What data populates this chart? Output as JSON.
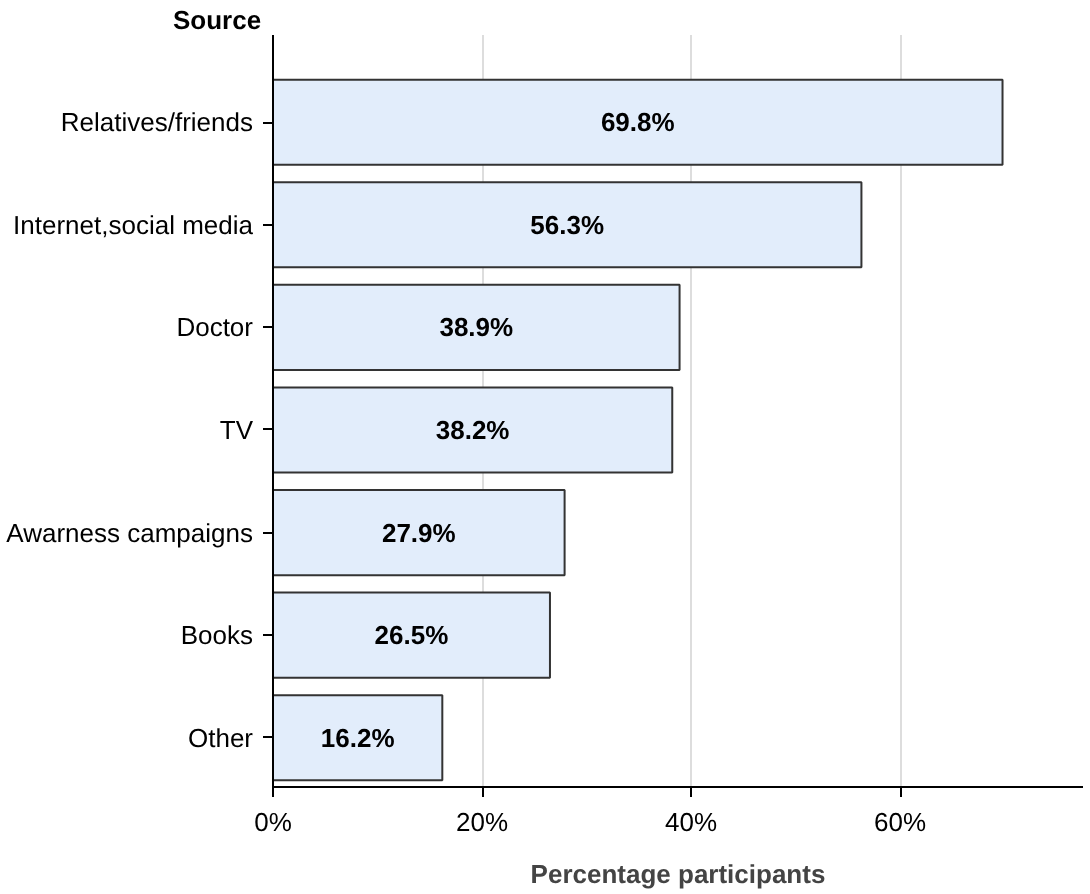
{
  "chart_data": {
    "type": "bar",
    "orientation": "horizontal",
    "ylabel": "Source",
    "xlabel": "Percentage participants",
    "categories": [
      "Relatives/friends",
      "Internet,social media",
      "Doctor",
      "TV",
      "Awarness campaigns",
      "Books",
      "Other"
    ],
    "values": [
      69.8,
      56.3,
      38.9,
      38.2,
      27.9,
      26.5,
      16.2
    ],
    "value_labels": [
      "69.8%",
      "56.3%",
      "38.9%",
      "38.2%",
      "27.9%",
      "26.5%",
      "16.2%"
    ],
    "color": "#e2edfb",
    "xlim": [
      0,
      77.5
    ],
    "xticks": [
      {
        "value": 0,
        "label": "0%"
      },
      {
        "value": 20,
        "label": "20%"
      },
      {
        "value": 40,
        "label": "40%"
      },
      {
        "value": 60,
        "label": "60%"
      }
    ],
    "grid": "x"
  }
}
